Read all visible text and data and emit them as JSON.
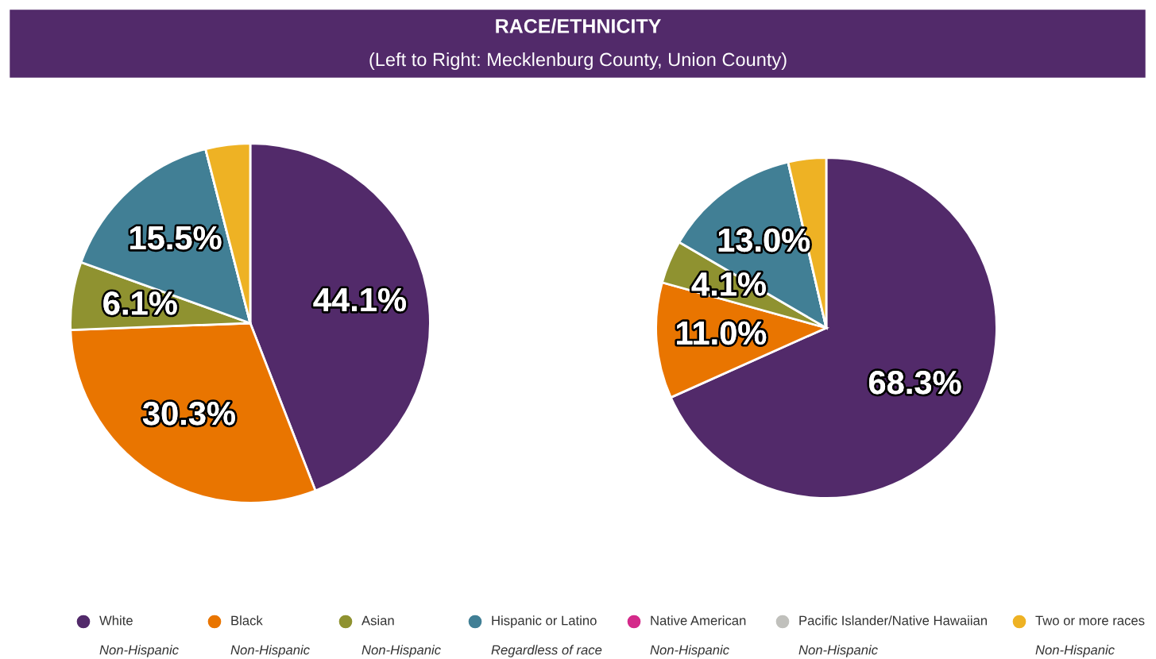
{
  "chart_data": [
    {
      "type": "pie",
      "title": "RACE/ETHNICITY",
      "subtitle": "(Left to Right: Mecklenburg County, Union County)",
      "categories": [
        "White",
        "Black",
        "Asian",
        "Hispanic or Latino",
        "Native American",
        "Pacific Islander/Native Hawaiian",
        "Two or more races"
      ],
      "values": [
        44.1,
        30.3,
        6.1,
        15.5,
        0,
        0,
        4.0
      ],
      "value_labels": [
        "44.1%",
        "30.3%",
        "6.1%",
        "15.5%",
        null,
        null,
        null
      ],
      "colors": [
        "#522a6a",
        "#e97500",
        "#8f9230",
        "#417f95",
        "#d42a8a",
        "#c0c0bc",
        "#eeb224"
      ],
      "legend": "bottom",
      "annotations": [
        "Non-Hispanic",
        "Non-Hispanic",
        "Non-Hispanic",
        "Regardless of race",
        "Non-Hispanic",
        "Non-Hispanic",
        "Non-Hispanic"
      ]
    },
    {
      "type": "pie",
      "categories": [
        null,
        null,
        null,
        null,
        null,
        null,
        null
      ],
      "values": [
        68.3,
        11.0,
        4.1,
        13.0,
        0,
        0,
        3.6
      ],
      "value_labels": [
        "68.3%",
        "11.0%",
        "4.1%",
        "13.0%",
        null,
        null,
        null
      ],
      "colors": [
        "#522a6a",
        "#e97500",
        "#8f9230",
        "#417f95",
        "#d42a8a",
        "#c0c0bc",
        "#eeb224"
      ]
    }
  ]
}
